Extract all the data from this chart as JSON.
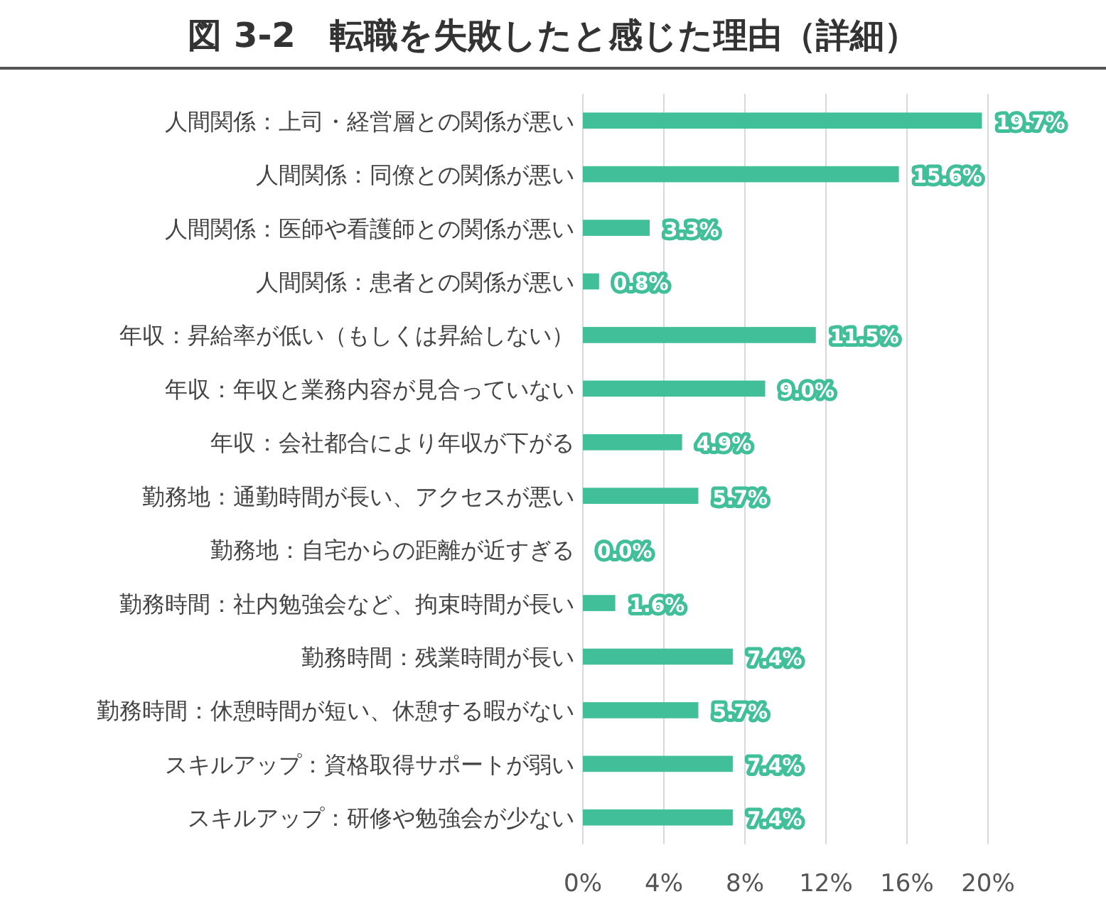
{
  "chart_data": {
    "type": "bar",
    "orientation": "horizontal",
    "title": "図 3-2　転職を失敗したと感じた理由（詳細）",
    "categories": [
      "人間関係：上司・経営層との関係が悪い",
      "人間関係：同僚との関係が悪い",
      "人間関係：医師や看護師との関係が悪い",
      "人間関係：患者との関係が悪い",
      "年収：昇給率が低い（もしくは昇給しない）",
      "年収：年収と業務内容が見合っていない",
      "年収：会社都合により年収が下がる",
      "勤務地：通勤時間が長い、アクセスが悪い",
      "勤務地：自宅からの距離が近すぎる",
      "勤務時間：社内勉強会など、拘束時間が長い",
      "勤務時間：残業時間が長い",
      "勤務時間：休憩時間が短い、休憩する暇がない",
      "スキルアップ：資格取得サポートが弱い",
      "スキルアップ：研修や勉強会が少ない"
    ],
    "values": [
      19.7,
      15.6,
      3.3,
      0.8,
      11.5,
      9.0,
      4.9,
      5.7,
      0.0,
      1.6,
      7.4,
      5.7,
      7.4,
      7.4
    ],
    "value_labels": [
      "19.7%",
      "15.6%",
      "3.3%",
      "0.8%",
      "11.5%",
      "9.0%",
      "4.9%",
      "5.7%",
      "0.0%",
      "1.6%",
      "7.4%",
      "5.7%",
      "7.4%",
      "7.4%"
    ],
    "color": "#40bf98",
    "xlim": [
      0,
      20
    ],
    "xticks": [
      {
        "value": 0,
        "label": "0%"
      },
      {
        "value": 4,
        "label": "4%"
      },
      {
        "value": 8,
        "label": "8%"
      },
      {
        "value": 12,
        "label": "12%"
      },
      {
        "value": 16,
        "label": "16%"
      },
      {
        "value": 20,
        "label": "20%"
      }
    ],
    "grid": "x"
  }
}
